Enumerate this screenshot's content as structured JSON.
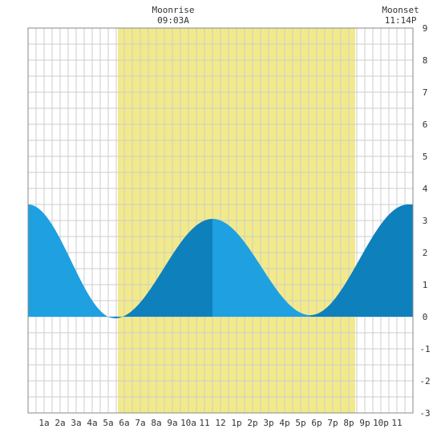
{
  "chart_data": {
    "type": "area",
    "x_unit": "hour of day",
    "x_tick_labels": [
      {
        "hour": 1,
        "label": "1a"
      },
      {
        "hour": 2,
        "label": "2a"
      },
      {
        "hour": 3,
        "label": "3a"
      },
      {
        "hour": 4,
        "label": "4a"
      },
      {
        "hour": 5,
        "label": "5a"
      },
      {
        "hour": 6,
        "label": "6a"
      },
      {
        "hour": 7,
        "label": "7a"
      },
      {
        "hour": 8,
        "label": "8a"
      },
      {
        "hour": 9,
        "label": "9a"
      },
      {
        "hour": 10,
        "label": "10a"
      },
      {
        "hour": 11,
        "label": "11"
      },
      {
        "hour": 12,
        "label": "12"
      },
      {
        "hour": 13,
        "label": "1p"
      },
      {
        "hour": 14,
        "label": "2p"
      },
      {
        "hour": 15,
        "label": "3p"
      },
      {
        "hour": 16,
        "label": "4p"
      },
      {
        "hour": 17,
        "label": "5p"
      },
      {
        "hour": 18,
        "label": "6p"
      },
      {
        "hour": 19,
        "label": "7p"
      },
      {
        "hour": 20,
        "label": "8p"
      },
      {
        "hour": 21,
        "label": "9p"
      },
      {
        "hour": 22,
        "label": "10p"
      },
      {
        "hour": 23,
        "label": "11"
      }
    ],
    "y_ticks": [
      -3,
      -2,
      -1,
      0,
      1,
      2,
      3,
      4,
      5,
      6,
      7,
      8,
      9
    ],
    "xlim": [
      0,
      24
    ],
    "ylim": [
      -3,
      9
    ],
    "grid": true,
    "daylight": {
      "start": 5.6,
      "end": 20.4,
      "color": "#f2ea8a"
    },
    "events": [
      {
        "name": "Moonrise",
        "time_label": "09:03A",
        "hour": 9.05
      },
      {
        "name": "Moonset",
        "time_label": "11:14P",
        "hour": 23.23
      }
    ],
    "extrema": [
      {
        "hour": 0.0,
        "value": 3.5
      },
      {
        "hour": 5.4,
        "value": -0.05
      },
      {
        "hour": 11.5,
        "value": 3.05
      },
      {
        "hour": 17.6,
        "value": 0.05
      },
      {
        "hour": 23.7,
        "value": 3.5
      }
    ],
    "colors": {
      "rising": "#0e80bc",
      "falling": "#1fa0e0",
      "grid": "#cccccc",
      "axis": "#888888"
    }
  }
}
